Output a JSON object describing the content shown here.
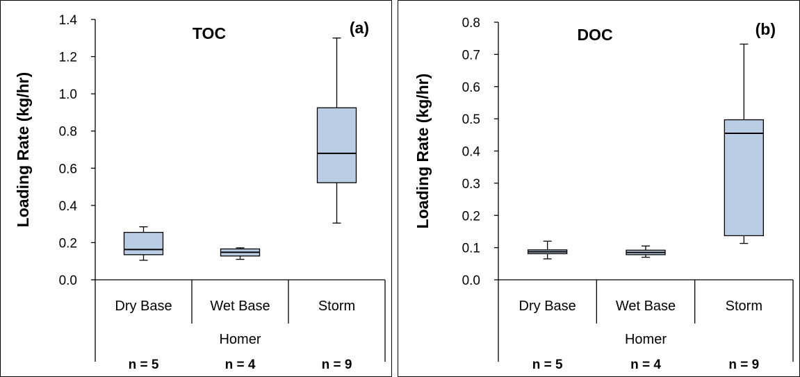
{
  "chart_data": [
    {
      "type": "box",
      "title": "TOC",
      "panel_tag": "(a)",
      "ylabel": "Loading Rate (kg/hr)",
      "ylim": [
        0,
        1.4
      ],
      "yticks": [
        "0.0",
        "0.2",
        "0.4",
        "0.6",
        "0.8",
        "1.0",
        "1.2",
        "1.4"
      ],
      "categories": [
        "Dry Base",
        "Wet Base",
        "Storm"
      ],
      "group_label": "Homer",
      "n_labels": [
        "n = 5",
        "n = 4",
        "n = 9"
      ],
      "fill_color": "#b9cde5",
      "boxes": [
        {
          "min": 0.105,
          "q1": 0.135,
          "median": 0.163,
          "q3": 0.255,
          "max": 0.285
        },
        {
          "min": 0.11,
          "q1": 0.128,
          "median": 0.148,
          "q3": 0.166,
          "max": 0.172
        },
        {
          "min": 0.305,
          "q1": 0.522,
          "median": 0.68,
          "q3": 0.925,
          "max": 1.3
        }
      ]
    },
    {
      "type": "box",
      "title": "DOC",
      "panel_tag": "(b)",
      "ylabel": "Loading Rate (kg/hr)",
      "ylim": [
        0,
        0.8
      ],
      "yticks": [
        "0.0",
        "0.1",
        "0.2",
        "0.3",
        "0.4",
        "0.5",
        "0.6",
        "0.7",
        "0.8"
      ],
      "categories": [
        "Dry Base",
        "Wet Base",
        "Storm"
      ],
      "group_label": "Homer",
      "n_labels": [
        "n = 5",
        "n = 4",
        "n = 9"
      ],
      "fill_color": "#b9cde5",
      "boxes": [
        {
          "min": 0.065,
          "q1": 0.081,
          "median": 0.087,
          "q3": 0.093,
          "max": 0.12
        },
        {
          "min": 0.07,
          "q1": 0.078,
          "median": 0.085,
          "q3": 0.092,
          "max": 0.105
        },
        {
          "min": 0.113,
          "q1": 0.137,
          "median": 0.455,
          "q3": 0.497,
          "max": 0.732
        }
      ]
    }
  ]
}
